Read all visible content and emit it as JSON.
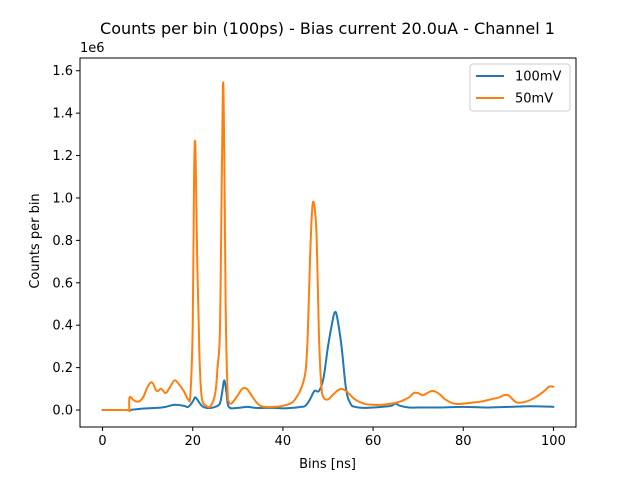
{
  "chart_data": {
    "type": "line",
    "title": "Counts per bin (100ps) - Bias current 20.0uA - Channel 1",
    "xlabel": "Bins [ns]",
    "ylabel": "Counts per bin",
    "y_offset_label": "1e6",
    "xlim": [
      -5,
      105
    ],
    "ylim": [
      -0.08,
      1.66
    ],
    "x_ticks": [
      0,
      20,
      40,
      60,
      80,
      100
    ],
    "x_tick_labels": [
      "0",
      "20",
      "40",
      "60",
      "80",
      "100"
    ],
    "y_ticks": [
      0.0,
      0.2,
      0.4,
      0.6,
      0.8,
      1.0,
      1.2,
      1.4,
      1.6
    ],
    "y_tick_labels": [
      "0.0",
      "0.2",
      "0.4",
      "0.6",
      "0.8",
      "1.0",
      "1.2",
      "1.4",
      "1.6"
    ],
    "grid": false,
    "legend_position": "top-right",
    "series": [
      {
        "name": "100mV",
        "color": "#1f77b4",
        "x": [
          0,
          5,
          6,
          8,
          10,
          12,
          14,
          16,
          18,
          19,
          20,
          20.5,
          21,
          22,
          23,
          24,
          25,
          26,
          26.5,
          27,
          27.5,
          28,
          30,
          32,
          34,
          36,
          38,
          40,
          42,
          44,
          45,
          46,
          47,
          48,
          49,
          50,
          51,
          51.5,
          52,
          53,
          54,
          55,
          56,
          58,
          60,
          62,
          64,
          65,
          66,
          68,
          70,
          75,
          80,
          85,
          90,
          95,
          100
        ],
        "y": [
          0.0,
          0.0,
          0.0,
          0.005,
          0.008,
          0.01,
          0.015,
          0.025,
          0.02,
          0.015,
          0.04,
          0.06,
          0.05,
          0.02,
          0.01,
          0.01,
          0.015,
          0.03,
          0.08,
          0.14,
          0.08,
          0.015,
          0.01,
          0.015,
          0.01,
          0.01,
          0.01,
          0.008,
          0.01,
          0.015,
          0.02,
          0.05,
          0.09,
          0.09,
          0.15,
          0.3,
          0.42,
          0.46,
          0.44,
          0.3,
          0.1,
          0.03,
          0.015,
          0.01,
          0.012,
          0.015,
          0.02,
          0.03,
          0.02,
          0.012,
          0.012,
          0.012,
          0.015,
          0.012,
          0.015,
          0.018,
          0.015
        ]
      },
      {
        "name": "50mV",
        "color": "#ff7f0e",
        "x": [
          0,
          5.5,
          5.9,
          6,
          7,
          8,
          9,
          10,
          11,
          12,
          13,
          14,
          15,
          16,
          17,
          18,
          19,
          19.5,
          20,
          20.3,
          20.6,
          21,
          21.5,
          22,
          23,
          24,
          25,
          25.5,
          26,
          26.3,
          26.7,
          27,
          27.3,
          27.7,
          28,
          28.5,
          29,
          30,
          31,
          32,
          33,
          34,
          35,
          36,
          38,
          40,
          42,
          43,
          44,
          45,
          45.5,
          46,
          46.5,
          47,
          47.5,
          48,
          48.5,
          49,
          50,
          51,
          52,
          53,
          54,
          55,
          56,
          58,
          60,
          62,
          64,
          66,
          68,
          69,
          70,
          71,
          72,
          73,
          74,
          75,
          76,
          78,
          80,
          82,
          84,
          86,
          88,
          89,
          90,
          91,
          92,
          94,
          96,
          98,
          99,
          100
        ],
        "y": [
          0.0,
          0.0,
          0.0,
          0.06,
          0.045,
          0.04,
          0.06,
          0.11,
          0.13,
          0.09,
          0.1,
          0.08,
          0.11,
          0.14,
          0.12,
          0.09,
          0.05,
          0.08,
          0.4,
          1.1,
          1.24,
          0.7,
          0.25,
          0.06,
          0.02,
          0.02,
          0.08,
          0.2,
          0.35,
          0.8,
          1.53,
          1.2,
          0.5,
          0.1,
          0.04,
          0.03,
          0.04,
          0.07,
          0.1,
          0.1,
          0.07,
          0.04,
          0.02,
          0.015,
          0.015,
          0.02,
          0.035,
          0.06,
          0.1,
          0.18,
          0.35,
          0.7,
          0.95,
          0.96,
          0.8,
          0.35,
          0.12,
          0.06,
          0.05,
          0.07,
          0.09,
          0.1,
          0.09,
          0.07,
          0.05,
          0.03,
          0.025,
          0.025,
          0.03,
          0.04,
          0.06,
          0.08,
          0.08,
          0.07,
          0.08,
          0.09,
          0.085,
          0.07,
          0.05,
          0.03,
          0.03,
          0.035,
          0.04,
          0.05,
          0.06,
          0.07,
          0.07,
          0.05,
          0.035,
          0.04,
          0.06,
          0.09,
          0.11,
          0.11
        ]
      }
    ]
  }
}
